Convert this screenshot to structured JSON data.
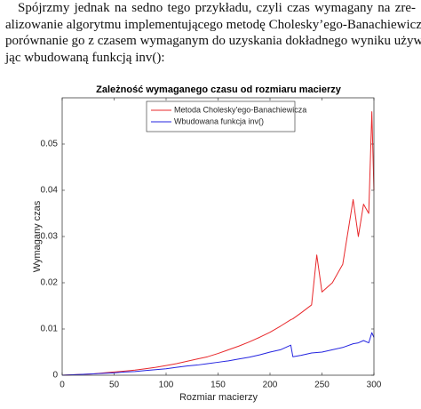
{
  "paragraph": {
    "lines": [
      "Spójrzmy jednak na sedno tego przykładu, czyli czas wymagany na zre-",
      "alizowanie algorytmu implementującego metodę Cholesky’ego-Banachiewicza i",
      "porównanie go z czasem wymaganym do uzyskania dokładnego wyniku używa-",
      "jąc wbudowaną funkcją inv():"
    ]
  },
  "chart_data": {
    "type": "line",
    "title": "Zależność wymaganego czasu od rozmiaru macierzy",
    "x_label": "Rozmiar macierzy",
    "y_label": "Wymagany czas",
    "x": [
      0,
      10,
      20,
      30,
      40,
      50,
      60,
      70,
      80,
      90,
      100,
      110,
      120,
      130,
      140,
      150,
      160,
      170,
      180,
      190,
      200,
      210,
      220,
      222,
      230,
      240,
      245,
      250,
      260,
      270,
      280,
      285,
      290,
      295,
      298,
      300
    ],
    "series": [
      {
        "name": "Metoda Cholesky'ego-Banachiewicza",
        "color": "#e8282b",
        "values": [
          0,
          0.0001,
          0.0002,
          0.0003,
          0.0005,
          0.0007,
          0.0009,
          0.0011,
          0.0014,
          0.0017,
          0.0021,
          0.0025,
          0.003,
          0.0035,
          0.004,
          0.0047,
          0.0055,
          0.0063,
          0.0072,
          0.0082,
          0.0093,
          0.0106,
          0.012,
          0.0122,
          0.0135,
          0.0152,
          0.026,
          0.018,
          0.02,
          0.024,
          0.038,
          0.03,
          0.037,
          0.035,
          0.057,
          0.04
        ]
      },
      {
        "name": "Wbudowana funkcja inv()",
        "color": "#2424e0",
        "values": [
          0,
          0.0001,
          0.0002,
          0.0003,
          0.0004,
          0.0005,
          0.0007,
          0.0008,
          0.001,
          0.0012,
          0.0014,
          0.0017,
          0.002,
          0.0022,
          0.0025,
          0.0028,
          0.0031,
          0.0035,
          0.0039,
          0.0044,
          0.005,
          0.0055,
          0.0065,
          0.004,
          0.0043,
          0.0048,
          0.0049,
          0.005,
          0.0055,
          0.006,
          0.0068,
          0.007,
          0.0075,
          0.007,
          0.0092,
          0.0082
        ]
      }
    ],
    "xlim": [
      0,
      300
    ],
    "xticks": [
      0,
      50,
      100,
      150,
      200,
      250,
      300
    ],
    "ylim": [
      0,
      0.06
    ],
    "yticks": [
      0,
      0.01,
      0.02,
      0.03,
      0.04,
      0.05
    ],
    "legend": "north"
  }
}
